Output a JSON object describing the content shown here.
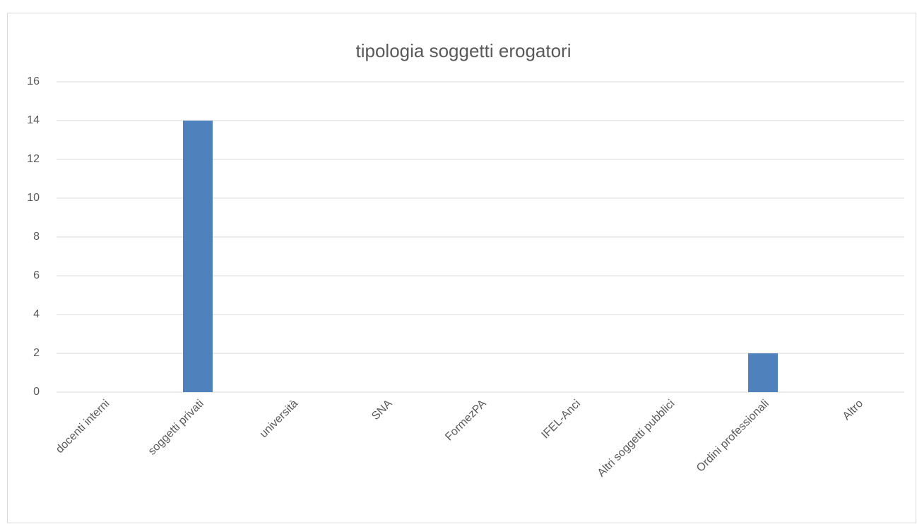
{
  "chart_data": {
    "type": "bar",
    "title": "tipologia soggetti erogatori",
    "categories": [
      "docenti interni",
      "soggetti privati",
      "università",
      "SNA",
      "FormezPA",
      "IFEL-Anci",
      "Altri soggetti pubblici",
      "Ordini professionali",
      "Altro"
    ],
    "values": [
      0,
      14,
      0,
      0,
      0,
      0,
      0,
      2,
      0
    ],
    "color": "#4f81bd",
    "ylim": [
      0,
      16
    ],
    "yticks": [
      0,
      2,
      4,
      6,
      8,
      10,
      12,
      14,
      16
    ],
    "grid": true
  }
}
